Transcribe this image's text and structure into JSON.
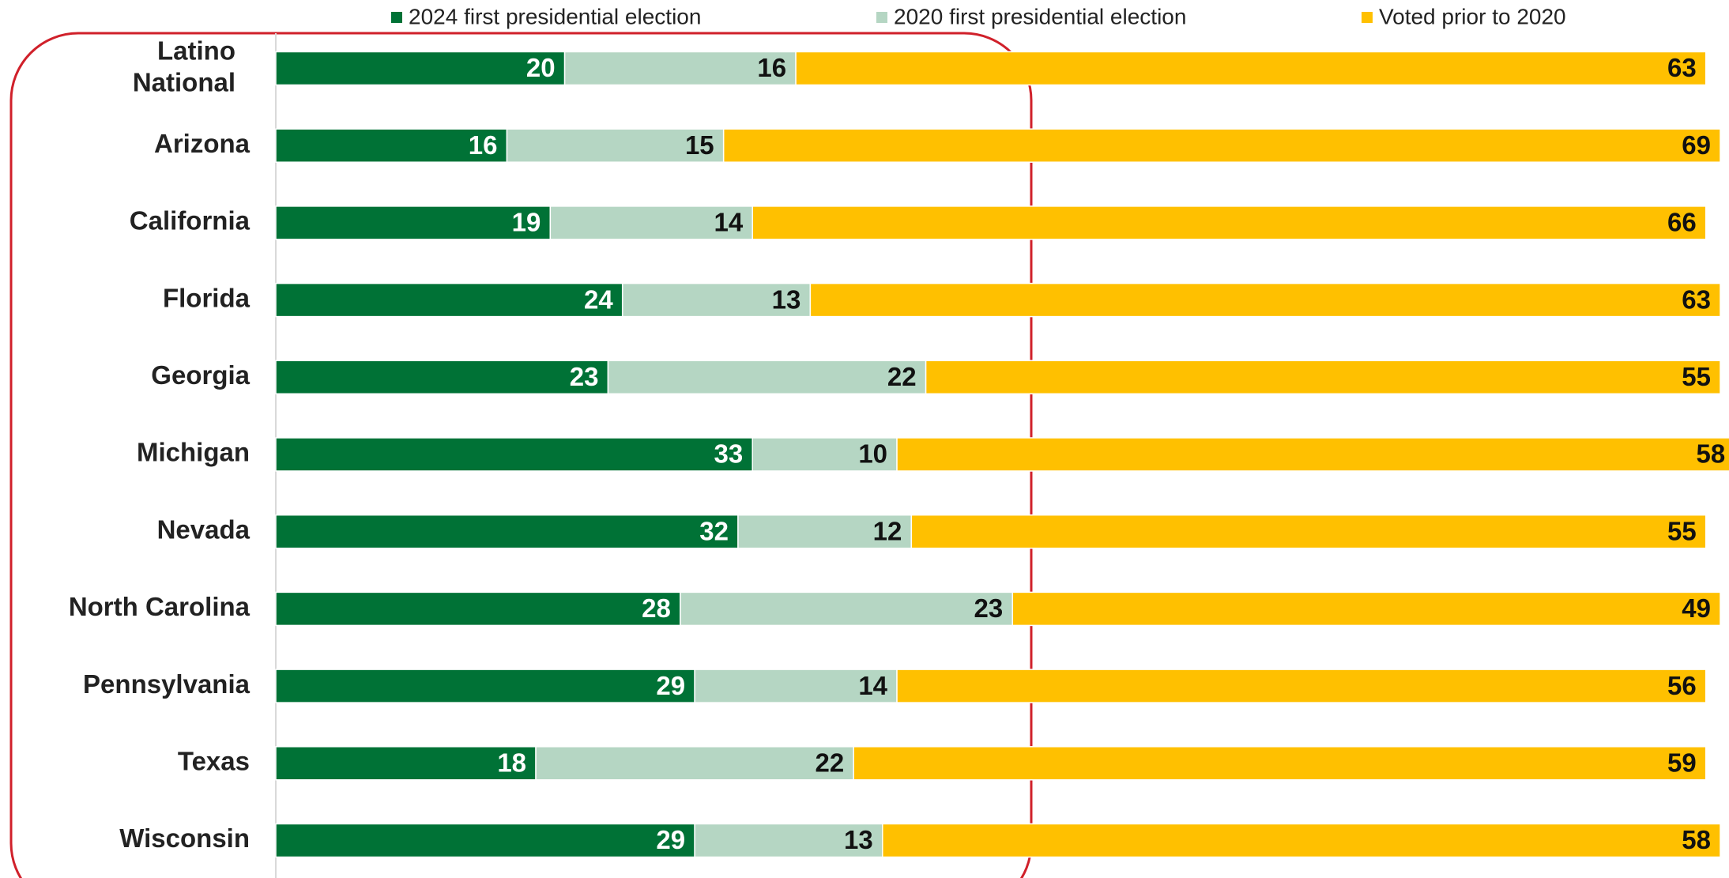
{
  "chart_data": {
    "type": "stacked-bar",
    "categories": [
      "Latino\nNational",
      "Arizona",
      "California",
      "Florida",
      "Georgia",
      "Michigan",
      "Nevada",
      "North Carolina",
      "Pennsylvania",
      "Texas",
      "Wisconsin"
    ],
    "series": [
      {
        "name": "2024 first presidential election",
        "color": "#007236",
        "values": [
          20,
          16,
          19,
          24,
          23,
          33,
          32,
          28,
          29,
          18,
          29
        ]
      },
      {
        "name": "2020 first presidential election",
        "color": "#b5d6c3",
        "values": [
          16,
          15,
          14,
          13,
          22,
          10,
          12,
          23,
          14,
          22,
          13
        ]
      },
      {
        "name": "Voted prior to 2020",
        "color": "#ffc000",
        "values": [
          63,
          69,
          66,
          63,
          55,
          58,
          55,
          49,
          56,
          59,
          58
        ]
      }
    ],
    "xlim": [
      0,
      100
    ]
  }
}
